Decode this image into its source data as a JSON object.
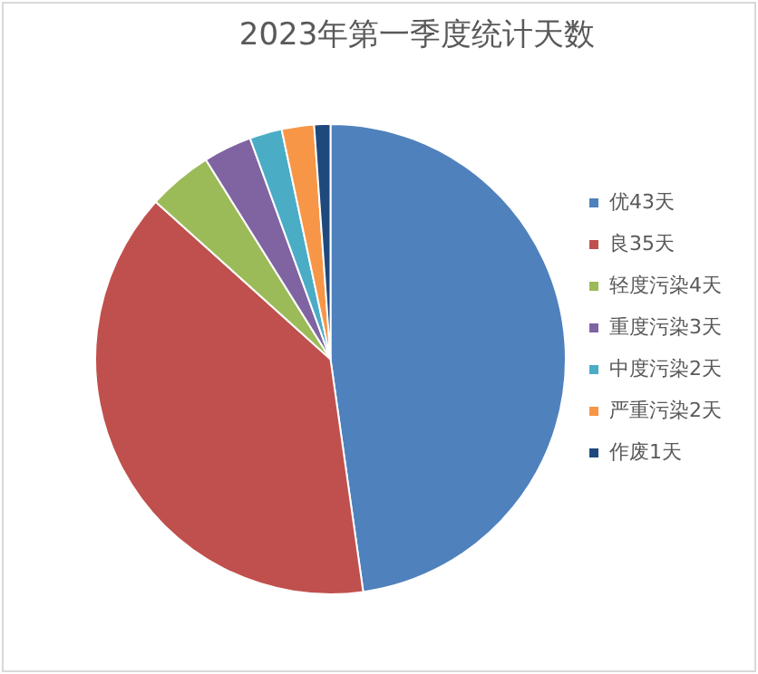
{
  "chart_data": {
    "type": "pie",
    "title": "2023年第一季度统计天数",
    "categories": [
      "优43天",
      "良35天",
      "轻度污染4天",
      "重度污染3天",
      "中度污染2天",
      "严重污染2天",
      "作废1天"
    ],
    "values": [
      43,
      35,
      4,
      3,
      2,
      2,
      1
    ],
    "colors": [
      "#4f81bd",
      "#c0504d",
      "#9bbb59",
      "#8064a2",
      "#4bacc6",
      "#f79646",
      "#1f497d"
    ],
    "legend": "right"
  }
}
